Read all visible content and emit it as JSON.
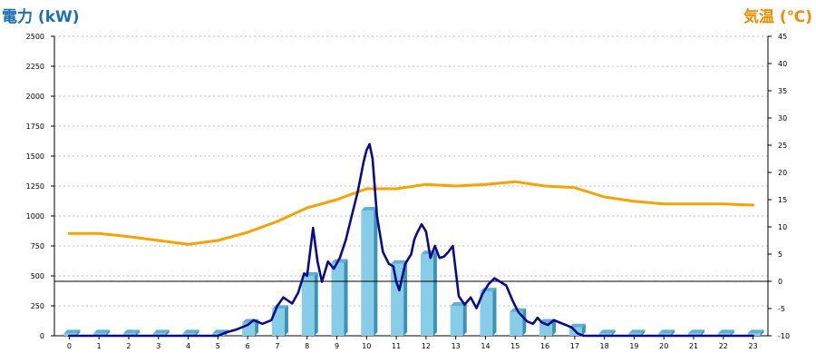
{
  "chart_data": {
    "type": "bar",
    "left_axis": {
      "label": "電力 (kW)",
      "min": 0,
      "max": 2500,
      "ticks": [
        0,
        250,
        500,
        750,
        1000,
        1250,
        1500,
        1750,
        2000,
        2250,
        2500
      ]
    },
    "right_axis": {
      "label": "気温 (℃)",
      "min": -10,
      "max": 45,
      "ticks": [
        -10,
        -5,
        0,
        5,
        10,
        15,
        20,
        25,
        30,
        35,
        40,
        45
      ],
      "color": "#f08c00"
    },
    "categories": [
      "0",
      "1",
      "2",
      "3",
      "4",
      "5",
      "6",
      "7",
      "8",
      "9",
      "10",
      "11",
      "12",
      "13",
      "14",
      "15",
      "16",
      "17",
      "18",
      "19",
      "20",
      "21",
      "22",
      "23"
    ],
    "grid": "horizontal dotted",
    "series": [
      {
        "kind": "bar",
        "axis": "left",
        "color": "#87cde8",
        "values": [
          20,
          20,
          20,
          20,
          20,
          20,
          110,
          225,
          500,
          610,
          1045,
          600,
          680,
          250,
          370,
          200,
          110,
          70,
          20,
          20,
          20,
          20,
          20,
          20
        ]
      },
      {
        "kind": "line",
        "axis": "right",
        "color": "#f5a300",
        "x": [
          0,
          1,
          2,
          3,
          4,
          5,
          6,
          7,
          8,
          9,
          10,
          11,
          12,
          13,
          14,
          15,
          16,
          17,
          18,
          19,
          20,
          21,
          22,
          23
        ],
        "values": [
          8.8,
          8.8,
          8.2,
          7.5,
          6.8,
          7.5,
          9,
          11,
          13.5,
          15,
          17,
          17,
          17.8,
          17.5,
          17.8,
          18.3,
          17.5,
          17.2,
          15.5,
          14.7,
          14.2,
          14.2,
          14.2,
          14
        ]
      },
      {
        "kind": "line",
        "axis": "left",
        "color": "#0a0a8c",
        "x": [
          0,
          5,
          5.3,
          5.6,
          6,
          6.2,
          6.5,
          6.8,
          7,
          7.2,
          7.5,
          7.7,
          7.9,
          8.0,
          8.1,
          8.2,
          8.35,
          8.5,
          8.7,
          8.9,
          9.1,
          9.3,
          9.5,
          9.7,
          9.9,
          10.0,
          10.1,
          10.2,
          10.35,
          10.55,
          10.75,
          10.9,
          11.0,
          11.1,
          11.3,
          11.5,
          11.6,
          11.7,
          11.85,
          12.0,
          12.15,
          12.3,
          12.45,
          12.6,
          12.75,
          12.9,
          13.1,
          13.3,
          13.5,
          13.7,
          13.9,
          14.1,
          14.3,
          14.5,
          14.7,
          14.9,
          15.1,
          15.4,
          15.6,
          15.75,
          15.9,
          16.1,
          16.3,
          16.5,
          16.7,
          16.9,
          17.1,
          17.3,
          17.5,
          18,
          23
        ],
        "values": [
          0,
          0,
          30,
          50,
          90,
          130,
          100,
          130,
          250,
          320,
          270,
          360,
          520,
          500,
          700,
          900,
          620,
          450,
          620,
          560,
          650,
          800,
          1000,
          1200,
          1450,
          1550,
          1600,
          1480,
          1000,
          700,
          600,
          580,
          450,
          380,
          600,
          680,
          800,
          860,
          930,
          870,
          650,
          750,
          650,
          660,
          700,
          750,
          330,
          260,
          320,
          230,
          350,
          430,
          480,
          450,
          420,
          300,
          200,
          120,
          100,
          150,
          110,
          90,
          130,
          110,
          90,
          70,
          20,
          0,
          0,
          0,
          0
        ]
      }
    ],
    "reference_line": {
      "axis": "right",
      "value": 0
    }
  }
}
